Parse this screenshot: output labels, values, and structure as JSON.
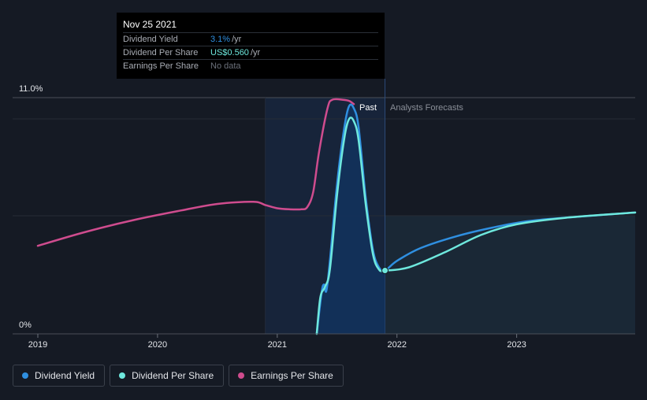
{
  "tooltip": {
    "date": "Nov 25 2021",
    "rows": [
      {
        "label": "Dividend Yield",
        "value": "3.1%",
        "unit": "/yr",
        "color": "#2f8fe0"
      },
      {
        "label": "Dividend Per Share",
        "value": "US$0.560",
        "unit": "/yr",
        "color": "#6ee8dd"
      },
      {
        "label": "Earnings Per Share",
        "value": "No data",
        "unit": "",
        "color": "#6b707a"
      }
    ]
  },
  "region_labels": {
    "past": "Past",
    "forecast": "Analysts Forecasts"
  },
  "legend": [
    {
      "label": "Dividend Yield",
      "color": "#2f8fe0"
    },
    {
      "label": "Dividend Per Share",
      "color": "#6ee8dd"
    },
    {
      "label": "Earnings Per Share",
      "color": "#cf4c8e"
    }
  ],
  "colors": {
    "background": "#151a24",
    "past_shade": "#17243a",
    "forecast_shade": "#1b2a38",
    "area_fill": "#12325e"
  },
  "chart_data": {
    "type": "line",
    "x_ticks": [
      2019,
      2020,
      2021,
      2022,
      2023
    ],
    "xlim": [
      2019.0,
      2023.99
    ],
    "y_tick_labels": [
      "11.0%",
      "0%"
    ],
    "ylim": [
      0,
      11.0
    ],
    "past_start": 2020.9,
    "divider_x": 2021.9,
    "grid": true,
    "legend_position": "bottom-left",
    "series": [
      {
        "name": "Dividend Yield",
        "color": "#2f8fe0",
        "points": [
          [
            2021.33,
            0.0
          ],
          [
            2021.37,
            1.9
          ],
          [
            2021.39,
            2.3
          ],
          [
            2021.41,
            2.0
          ],
          [
            2021.44,
            3.4
          ],
          [
            2021.5,
            7.0
          ],
          [
            2021.56,
            9.6
          ],
          [
            2021.6,
            10.6
          ],
          [
            2021.64,
            10.5
          ],
          [
            2021.68,
            9.6
          ],
          [
            2021.74,
            6.3
          ],
          [
            2021.8,
            3.9
          ],
          [
            2021.85,
            3.1
          ],
          [
            2021.9,
            2.95
          ],
          [
            2022.0,
            3.4
          ],
          [
            2022.2,
            4.0
          ],
          [
            2022.5,
            4.55
          ],
          [
            2022.8,
            4.95
          ],
          [
            2023.1,
            5.25
          ],
          [
            2023.5,
            5.45
          ],
          [
            2023.99,
            5.65
          ]
        ]
      },
      {
        "name": "Dividend Per Share",
        "color": "#6ee8dd",
        "points": [
          [
            2021.33,
            0.0
          ],
          [
            2021.36,
            1.7
          ],
          [
            2021.4,
            2.2
          ],
          [
            2021.44,
            3.0
          ],
          [
            2021.5,
            6.5
          ],
          [
            2021.56,
            9.1
          ],
          [
            2021.6,
            10.0
          ],
          [
            2021.64,
            9.9
          ],
          [
            2021.68,
            9.0
          ],
          [
            2021.74,
            6.0
          ],
          [
            2021.8,
            3.7
          ],
          [
            2021.85,
            3.0
          ],
          [
            2021.9,
            2.95
          ],
          [
            2022.1,
            3.1
          ],
          [
            2022.4,
            3.8
          ],
          [
            2022.7,
            4.6
          ],
          [
            2023.0,
            5.1
          ],
          [
            2023.4,
            5.4
          ],
          [
            2023.99,
            5.65
          ]
        ]
      },
      {
        "name": "Earnings Per Share",
        "color": "#cf4c8e",
        "points": [
          [
            2019.0,
            4.1
          ],
          [
            2019.4,
            4.75
          ],
          [
            2019.8,
            5.3
          ],
          [
            2020.2,
            5.75
          ],
          [
            2020.5,
            6.05
          ],
          [
            2020.8,
            6.15
          ],
          [
            2020.9,
            6.0
          ],
          [
            2021.0,
            5.85
          ],
          [
            2021.1,
            5.8
          ],
          [
            2021.2,
            5.8
          ],
          [
            2021.25,
            5.9
          ],
          [
            2021.3,
            6.6
          ],
          [
            2021.35,
            8.5
          ],
          [
            2021.42,
            10.5
          ],
          [
            2021.46,
            10.9
          ],
          [
            2021.55,
            10.9
          ],
          [
            2021.6,
            10.85
          ],
          [
            2021.64,
            10.7
          ]
        ]
      }
    ]
  }
}
